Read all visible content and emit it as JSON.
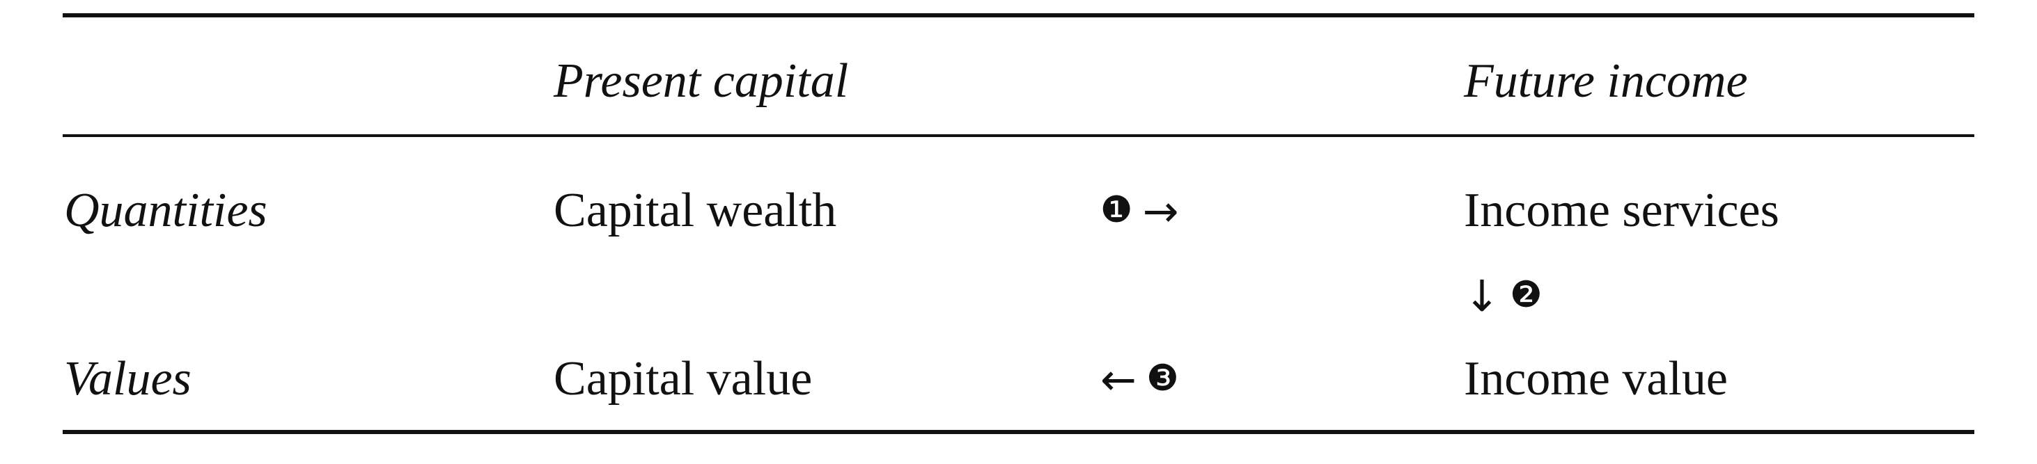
{
  "table": {
    "header": {
      "col1": "",
      "col2": "Present capital",
      "col3": "",
      "col4": "Future income"
    },
    "rows": [
      {
        "label": "Quantities",
        "present": "Capital wealth",
        "link_marker": "❶",
        "link_arrow": "→",
        "future": "Income services"
      },
      {
        "label": "",
        "present": "",
        "link_marker": "",
        "link_arrow": "",
        "future_arrow": "↓",
        "future_marker": "❷"
      },
      {
        "label": "Values",
        "present": "Capital value",
        "link_arrow": "←",
        "link_marker": "❸",
        "future": "Income value"
      }
    ]
  }
}
